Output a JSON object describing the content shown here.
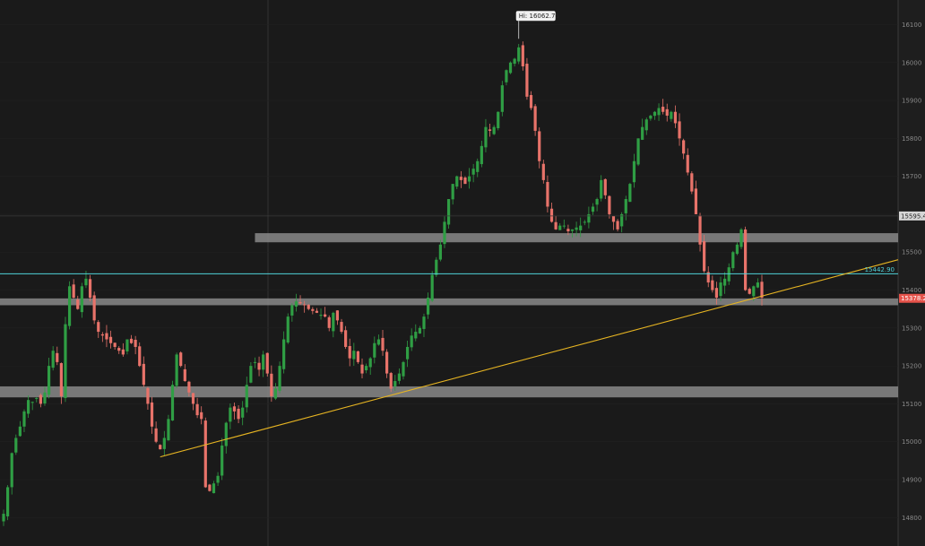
{
  "chart_data": {
    "type": "candlestick",
    "y_ticks": [
      16100,
      16000,
      15900,
      15800,
      15700,
      15600,
      15500,
      15400,
      15300,
      15200,
      15100,
      15000,
      14900,
      14800
    ],
    "ylim": [
      14725,
      16165
    ],
    "hi_label": "Hi: 16062.75",
    "hi_value": 16062.75,
    "hline_label": "15442.90",
    "hline_value": 15442.9,
    "crosshair_label": "15595.45",
    "crosshair_value": 15595.45,
    "last_price_label": "15378.25",
    "last_price_value": 15378.25,
    "zones": [
      {
        "low": 15526,
        "high": 15550,
        "start_index": 61
      },
      {
        "low": 15360,
        "high": 15378,
        "start_index": 0
      },
      {
        "low": 15117,
        "high": 15146,
        "start_index": 0
      }
    ],
    "trendline": {
      "start_index": 38,
      "start_value": 14960,
      "end_value": 15480
    },
    "closes": [
      14810,
      14880,
      14970,
      15010,
      15040,
      15080,
      15110,
      15105,
      15115,
      15100,
      15130,
      15200,
      15240,
      15210,
      15120,
      15310,
      15410,
      15380,
      15350,
      15410,
      15430,
      15380,
      15320,
      15290,
      15280,
      15270,
      15260,
      15250,
      15240,
      15230,
      15270,
      15260,
      15250,
      15200,
      15150,
      15100,
      15040,
      15000,
      14980,
      15010,
      15060,
      15150,
      15230,
      15200,
      15160,
      15130,
      15100,
      15070,
      15060,
      14880,
      14870,
      14890,
      14910,
      14990,
      15050,
      15090,
      15080,
      15060,
      15090,
      15150,
      15200,
      15210,
      15190,
      15230,
      15180,
      15120,
      15140,
      15200,
      15270,
      15330,
      15360,
      15370,
      15365,
      15360,
      15350,
      15345,
      15340,
      15335,
      15330,
      15300,
      15340,
      15320,
      15290,
      15250,
      15220,
      15240,
      15210,
      15180,
      15200,
      15220,
      15260,
      15270,
      15240,
      15180,
      15140,
      15160,
      15180,
      15210,
      15250,
      15280,
      15290,
      15300,
      15330,
      15380,
      15440,
      15480,
      15520,
      15580,
      15640,
      15680,
      15700,
      15690,
      15680,
      15700,
      15720,
      15740,
      15780,
      15830,
      15820,
      15830,
      15870,
      15940,
      15980,
      16000,
      16010,
      16040,
      15990,
      15910,
      15880,
      15820,
      15740,
      15690,
      15620,
      15580,
      15560,
      15570,
      15570,
      15555,
      15560,
      15565,
      15570,
      15580,
      15600,
      15620,
      15640,
      15690,
      15650,
      15600,
      15580,
      15560,
      15600,
      15640,
      15680,
      15740,
      15800,
      15830,
      15850,
      15860,
      15870,
      15880,
      15870,
      15860,
      15870,
      15840,
      15800,
      15760,
      15710,
      15660,
      15600,
      15520,
      15450,
      15420,
      15400,
      15380,
      15420,
      15430,
      15460,
      15500,
      15520,
      15560,
      15400,
      15390,
      15410,
      15420,
      15380
    ]
  }
}
